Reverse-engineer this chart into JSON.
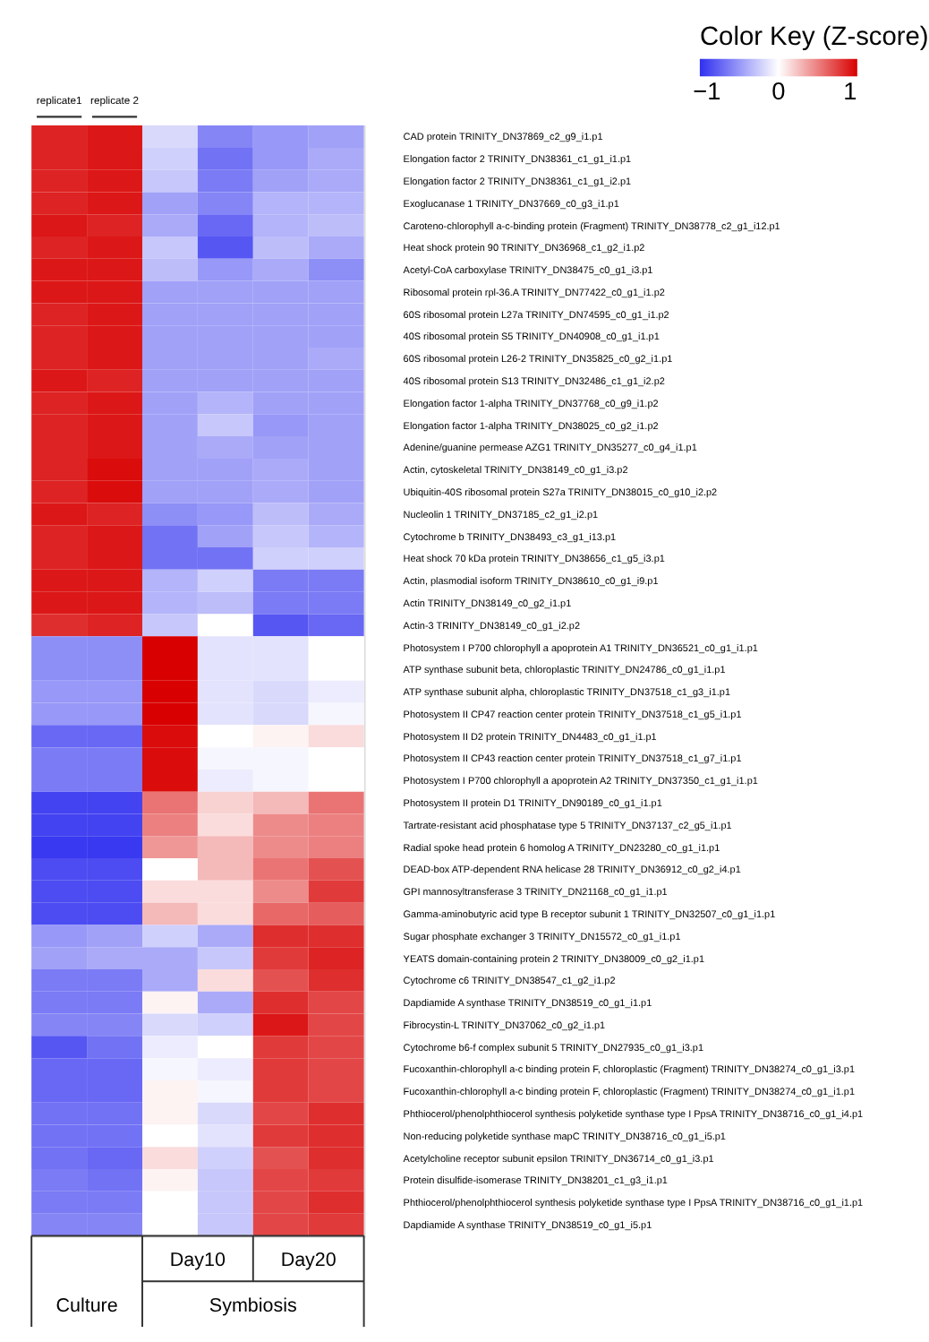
{
  "chart_data": {
    "type": "heatmap",
    "categories": [
      "replicate1",
      "replicate 2",
      null,
      null,
      null,
      null
    ],
    "y_categories": [
      "CAD protein TRINITY_DN37869_c2_g9_i1.p1",
      "Elongation factor 2 TRINITY_DN38361_c1_g1_i1.p1",
      "Elongation factor 2 TRINITY_DN38361_c1_g1_i2.p1",
      "Exoglucanase 1 TRINITY_DN37669_c0_g3_i1.p1",
      "Caroteno-chlorophyll a-c-binding protein (Fragment) TRINITY_DN38778_c2_g1_i12.p1",
      "Heat shock protein 90 TRINITY_DN36968_c1_g2_i1.p2",
      "Acetyl-CoA carboxylase TRINITY_DN38475_c0_g1_i3.p1",
      "Ribosomal protein rpl-36.A TRINITY_DN77422_c0_g1_i1.p2",
      "60S ribosomal protein L27a TRINITY_DN74595_c0_g1_i1.p2",
      "40S ribosomal protein S5 TRINITY_DN40908_c0_g1_i1.p1",
      "60S ribosomal protein L26-2 TRINITY_DN35825_c0_g2_i1.p1",
      "40S ribosomal protein S13 TRINITY_DN32486_c1_g1_i2.p2",
      "Elongation factor 1-alpha TRINITY_DN37768_c0_g9_i1.p2",
      "Elongation factor 1-alpha TRINITY_DN38025_c0_g2_i1.p2",
      "Adenine/guanine permease AZG1 TRINITY_DN35277_c0_g4_i1.p1",
      "Actin, cytoskeletal TRINITY_DN38149_c0_g1_i3.p2",
      "Ubiquitin-40S ribosomal protein S27a TRINITY_DN38015_c0_g10_i2.p2",
      "Nucleolin 1 TRINITY_DN37185_c2_g1_i2.p1",
      "Cytochrome b TRINITY_DN38493_c3_g1_i13.p1",
      "Heat shock 70 kDa protein TRINITY_DN38656_c1_g5_i3.p1",
      "Actin, plasmodial isoform TRINITY_DN38610_c0_g1_i9.p1",
      "Actin TRINITY_DN38149_c0_g2_i1.p1",
      "Actin-3 TRINITY_DN38149_c0_g1_i2.p2",
      "Photosystem I P700 chlorophyll a apoprotein A1 TRINITY_DN36521_c0_g1_i1.p1",
      "ATP synthase subunit beta, chloroplastic TRINITY_DN24786_c0_g1_i1.p1",
      "ATP synthase subunit alpha, chloroplastic TRINITY_DN37518_c1_g3_i1.p1",
      "Photosystem II CP47 reaction center protein TRINITY_DN37518_c1_g5_i1.p1",
      "Photosystem II D2 protein TRINITY_DN4483_c0_g1_i1.p1",
      "Photosystem II CP43 reaction center protein TRINITY_DN37518_c1_g7_i1.p1",
      "Photosystem I P700 chlorophyll a apoprotein A2 TRINITY_DN37350_c1_g1_i1.p1",
      "Photosystem II protein D1 TRINITY_DN90189_c0_g1_i1.p1",
      "Tartrate-resistant acid phosphatase type 5 TRINITY_DN37137_c2_g5_i1.p1",
      "Radial spoke head protein 6 homolog A TRINITY_DN23280_c0_g1_i1.p1",
      "DEAD-box ATP-dependent RNA helicase 28 TRINITY_DN36912_c0_g2_i4.p1",
      "GPI mannosyltransferase 3 TRINITY_DN21168_c0_g1_i1.p1",
      "Gamma-aminobutyric acid type B receptor subunit 1 TRINITY_DN32507_c0_g1_i1.p1",
      "Sugar phosphate exchanger 3 TRINITY_DN15572_c0_g1_i1.p1",
      "YEATS domain-containing protein 2 TRINITY_DN38009_c0_g2_i1.p1",
      "Cytochrome c6 TRINITY_DN38547_c1_g2_i1.p2",
      "Dapdiamide A synthase TRINITY_DN38519_c0_g1_i1.p1",
      "Fibrocystin-L TRINITY_DN37062_c0_g2_i1.p1",
      "Cytochrome b6-f complex subunit 5 TRINITY_DN27935_c0_g1_i3.p1",
      "Fucoxanthin-chlorophyll a-c binding protein F, chloroplastic (Fragment) TRINITY_DN38274_c0_g1_i3.p1",
      "Fucoxanthin-chlorophyll a-c binding protein F, chloroplastic (Fragment) TRINITY_DN38274_c0_g1_i1.p1",
      "Phthiocerol/phenolphthiocerol synthesis polyketide synthase type I PpsA TRINITY_DN38716_c0_g1_i4.p1",
      "Non-reducing polyketide synthase mapC TRINITY_DN38716_c0_g1_i5.p1",
      "Acetylcholine receptor subunit epsilon TRINITY_DN36714_c0_g1_i3.p1",
      "Protein disulfide-isomerase TRINITY_DN38201_c1_g3_i1.p1",
      "Phthiocerol/phenolphthiocerol synthesis polyketide synthase type I PpsA TRINITY_DN38716_c0_g1_i1.p1",
      "Dapdiamide A synthase TRINITY_DN38519_c0_g1_i5.p1"
    ],
    "cells": [
      [
        0.95,
        1.0,
        -0.2,
        -0.65,
        -0.55,
        -0.5
      ],
      [
        0.95,
        1.0,
        -0.25,
        -0.75,
        -0.55,
        -0.45
      ],
      [
        0.95,
        1.0,
        -0.3,
        -0.7,
        -0.5,
        -0.45
      ],
      [
        0.95,
        1.0,
        -0.5,
        -0.65,
        -0.4,
        -0.4
      ],
      [
        1.0,
        0.95,
        -0.45,
        -0.8,
        -0.4,
        -0.35
      ],
      [
        0.95,
        1.0,
        -0.3,
        -0.9,
        -0.35,
        -0.45
      ],
      [
        1.0,
        1.0,
        -0.35,
        -0.55,
        -0.45,
        -0.6
      ],
      [
        1.0,
        1.0,
        -0.5,
        -0.5,
        -0.5,
        -0.5
      ],
      [
        0.95,
        1.0,
        -0.5,
        -0.5,
        -0.5,
        -0.5
      ],
      [
        0.95,
        1.0,
        -0.5,
        -0.5,
        -0.5,
        -0.5
      ],
      [
        0.95,
        1.0,
        -0.5,
        -0.5,
        -0.5,
        -0.45
      ],
      [
        1.0,
        0.95,
        -0.5,
        -0.5,
        -0.5,
        -0.5
      ],
      [
        0.95,
        1.0,
        -0.5,
        -0.4,
        -0.5,
        -0.5
      ],
      [
        0.95,
        1.0,
        -0.5,
        -0.3,
        -0.55,
        -0.5
      ],
      [
        0.95,
        1.0,
        -0.5,
        -0.45,
        -0.5,
        -0.5
      ],
      [
        0.95,
        1.05,
        -0.5,
        -0.5,
        -0.45,
        -0.5
      ],
      [
        0.95,
        1.05,
        -0.5,
        -0.5,
        -0.45,
        -0.5
      ],
      [
        1.0,
        0.95,
        -0.6,
        -0.55,
        -0.35,
        -0.45
      ],
      [
        0.95,
        1.0,
        -0.75,
        -0.5,
        -0.3,
        -0.4
      ],
      [
        0.95,
        1.0,
        -0.75,
        -0.75,
        -0.25,
        -0.25
      ],
      [
        1.0,
        1.0,
        -0.4,
        -0.25,
        -0.7,
        -0.7
      ],
      [
        1.0,
        1.0,
        -0.4,
        -0.35,
        -0.7,
        -0.7
      ],
      [
        0.9,
        0.95,
        -0.3,
        0.0,
        -0.9,
        -0.8
      ],
      [
        -0.6,
        -0.6,
        1.1,
        -0.15,
        -0.15,
        0.0
      ],
      [
        -0.6,
        -0.6,
        1.1,
        -0.15,
        -0.15,
        0.0
      ],
      [
        -0.55,
        -0.55,
        1.1,
        -0.15,
        -0.2,
        -0.1
      ],
      [
        -0.55,
        -0.55,
        1.1,
        -0.15,
        -0.2,
        -0.05
      ],
      [
        -0.8,
        -0.8,
        1.05,
        0.0,
        0.05,
        0.15
      ],
      [
        -0.7,
        -0.7,
        1.05,
        -0.05,
        -0.05,
        0.0
      ],
      [
        -0.7,
        -0.7,
        1.05,
        -0.1,
        -0.05,
        0.0
      ],
      [
        -1.0,
        -1.0,
        0.6,
        0.2,
        0.3,
        0.6
      ],
      [
        -1.0,
        -1.0,
        0.55,
        0.15,
        0.5,
        0.55
      ],
      [
        -1.05,
        -1.05,
        0.45,
        0.3,
        0.5,
        0.55
      ],
      [
        -0.95,
        -0.95,
        0.0,
        0.3,
        0.6,
        0.75
      ],
      [
        -0.95,
        -0.95,
        0.15,
        0.15,
        0.5,
        0.85
      ],
      [
        -0.95,
        -0.95,
        0.3,
        0.15,
        0.65,
        0.7
      ],
      [
        -0.55,
        -0.5,
        -0.25,
        -0.45,
        0.9,
        0.9
      ],
      [
        -0.5,
        -0.45,
        -0.45,
        -0.3,
        0.85,
        0.95
      ],
      [
        -0.7,
        -0.7,
        -0.45,
        0.15,
        0.75,
        0.9
      ],
      [
        -0.7,
        -0.7,
        0.05,
        -0.45,
        0.9,
        0.8
      ],
      [
        -0.65,
        -0.65,
        -0.2,
        -0.25,
        1.0,
        0.8
      ],
      [
        -0.9,
        -0.75,
        -0.1,
        0.0,
        0.85,
        0.8
      ],
      [
        -0.8,
        -0.8,
        -0.05,
        -0.1,
        0.85,
        0.8
      ],
      [
        -0.8,
        -0.8,
        0.05,
        -0.05,
        0.85,
        0.8
      ],
      [
        -0.75,
        -0.75,
        0.05,
        -0.2,
        0.8,
        0.9
      ],
      [
        -0.75,
        -0.75,
        0.0,
        -0.15,
        0.85,
        0.9
      ],
      [
        -0.75,
        -0.8,
        0.15,
        -0.25,
        0.75,
        0.9
      ],
      [
        -0.7,
        -0.75,
        0.05,
        -0.3,
        0.8,
        0.85
      ],
      [
        -0.7,
        -0.7,
        0.0,
        -0.3,
        0.8,
        0.9
      ],
      [
        -0.65,
        -0.65,
        0.0,
        -0.3,
        0.8,
        0.85
      ]
    ],
    "clabel": "Color Key (Z-score)",
    "clim": [
      -1.1,
      1.1
    ],
    "cticks": [
      -1,
      0,
      1
    ],
    "annotations": [
      "Culture",
      "Day10",
      "Day20",
      "Symbiosis"
    ]
  }
}
